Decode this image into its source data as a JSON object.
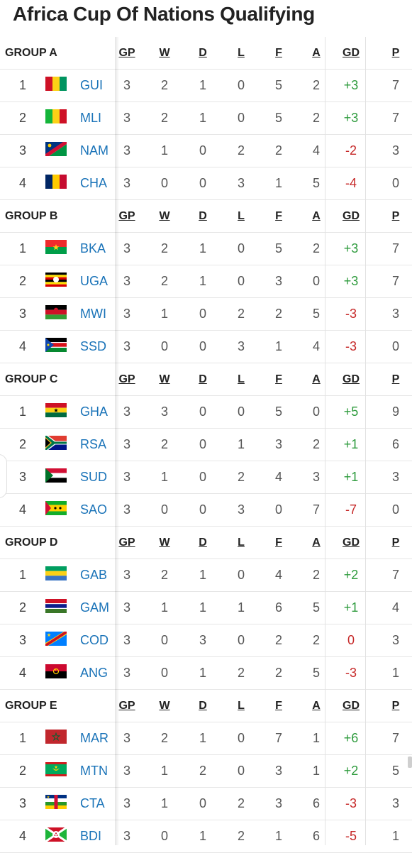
{
  "title": "Africa Cup Of Nations Qualifying",
  "columns": [
    "GP",
    "W",
    "D",
    "L",
    "F",
    "A",
    "GD",
    "P"
  ],
  "colors": {
    "team_link": "#1a73b8",
    "gd_positive": "#2e9b3d",
    "gd_negative": "#c62828"
  },
  "groups": [
    {
      "name": "GROUP A",
      "teams": [
        {
          "pos": "1",
          "code": "GUI",
          "flag": "guinea-flag",
          "gp": "3",
          "w": "2",
          "d": "1",
          "l": "0",
          "f": "5",
          "a": "2",
          "gd": "+3",
          "p": "7"
        },
        {
          "pos": "2",
          "code": "MLI",
          "flag": "mali-flag",
          "gp": "3",
          "w": "2",
          "d": "1",
          "l": "0",
          "f": "5",
          "a": "2",
          "gd": "+3",
          "p": "7"
        },
        {
          "pos": "3",
          "code": "NAM",
          "flag": "namibia-flag",
          "gp": "3",
          "w": "1",
          "d": "0",
          "l": "2",
          "f": "2",
          "a": "4",
          "gd": "-2",
          "p": "3"
        },
        {
          "pos": "4",
          "code": "CHA",
          "flag": "chad-flag",
          "gp": "3",
          "w": "0",
          "d": "0",
          "l": "3",
          "f": "1",
          "a": "5",
          "gd": "-4",
          "p": "0"
        }
      ]
    },
    {
      "name": "GROUP B",
      "teams": [
        {
          "pos": "1",
          "code": "BKA",
          "flag": "burkina-faso-flag",
          "gp": "3",
          "w": "2",
          "d": "1",
          "l": "0",
          "f": "5",
          "a": "2",
          "gd": "+3",
          "p": "7"
        },
        {
          "pos": "2",
          "code": "UGA",
          "flag": "uganda-flag",
          "gp": "3",
          "w": "2",
          "d": "1",
          "l": "0",
          "f": "3",
          "a": "0",
          "gd": "+3",
          "p": "7"
        },
        {
          "pos": "3",
          "code": "MWI",
          "flag": "malawi-flag",
          "gp": "3",
          "w": "1",
          "d": "0",
          "l": "2",
          "f": "2",
          "a": "5",
          "gd": "-3",
          "p": "3"
        },
        {
          "pos": "4",
          "code": "SSD",
          "flag": "south-sudan-flag",
          "gp": "3",
          "w": "0",
          "d": "0",
          "l": "3",
          "f": "1",
          "a": "4",
          "gd": "-3",
          "p": "0"
        }
      ]
    },
    {
      "name": "GROUP C",
      "teams": [
        {
          "pos": "1",
          "code": "GHA",
          "flag": "ghana-flag",
          "gp": "3",
          "w": "3",
          "d": "0",
          "l": "0",
          "f": "5",
          "a": "0",
          "gd": "+5",
          "p": "9"
        },
        {
          "pos": "2",
          "code": "RSA",
          "flag": "south-africa-flag",
          "gp": "3",
          "w": "2",
          "d": "0",
          "l": "1",
          "f": "3",
          "a": "2",
          "gd": "+1",
          "p": "6"
        },
        {
          "pos": "3",
          "code": "SUD",
          "flag": "sudan-flag",
          "gp": "3",
          "w": "1",
          "d": "0",
          "l": "2",
          "f": "4",
          "a": "3",
          "gd": "+1",
          "p": "3"
        },
        {
          "pos": "4",
          "code": "SAO",
          "flag": "sao-tome-flag",
          "gp": "3",
          "w": "0",
          "d": "0",
          "l": "3",
          "f": "0",
          "a": "7",
          "gd": "-7",
          "p": "0"
        }
      ]
    },
    {
      "name": "GROUP D",
      "teams": [
        {
          "pos": "1",
          "code": "GAB",
          "flag": "gabon-flag",
          "gp": "3",
          "w": "2",
          "d": "1",
          "l": "0",
          "f": "4",
          "a": "2",
          "gd": "+2",
          "p": "7"
        },
        {
          "pos": "2",
          "code": "GAM",
          "flag": "gambia-flag",
          "gp": "3",
          "w": "1",
          "d": "1",
          "l": "1",
          "f": "6",
          "a": "5",
          "gd": "+1",
          "p": "4"
        },
        {
          "pos": "3",
          "code": "COD",
          "flag": "dr-congo-flag",
          "gp": "3",
          "w": "0",
          "d": "3",
          "l": "0",
          "f": "2",
          "a": "2",
          "gd": "0",
          "p": "3"
        },
        {
          "pos": "4",
          "code": "ANG",
          "flag": "angola-flag",
          "gp": "3",
          "w": "0",
          "d": "1",
          "l": "2",
          "f": "2",
          "a": "5",
          "gd": "-3",
          "p": "1"
        }
      ]
    },
    {
      "name": "GROUP E",
      "teams": [
        {
          "pos": "1",
          "code": "MAR",
          "flag": "morocco-flag",
          "gp": "3",
          "w": "2",
          "d": "1",
          "l": "0",
          "f": "7",
          "a": "1",
          "gd": "+6",
          "p": "7"
        },
        {
          "pos": "2",
          "code": "MTN",
          "flag": "mauritania-flag",
          "gp": "3",
          "w": "1",
          "d": "2",
          "l": "0",
          "f": "3",
          "a": "1",
          "gd": "+2",
          "p": "5"
        },
        {
          "pos": "3",
          "code": "CTA",
          "flag": "central-african-republic-flag",
          "gp": "3",
          "w": "1",
          "d": "0",
          "l": "2",
          "f": "3",
          "a": "6",
          "gd": "-3",
          "p": "3"
        },
        {
          "pos": "4",
          "code": "BDI",
          "flag": "burundi-flag",
          "gp": "3",
          "w": "0",
          "d": "1",
          "l": "2",
          "f": "1",
          "a": "6",
          "gd": "-5",
          "p": "1"
        }
      ]
    }
  ]
}
